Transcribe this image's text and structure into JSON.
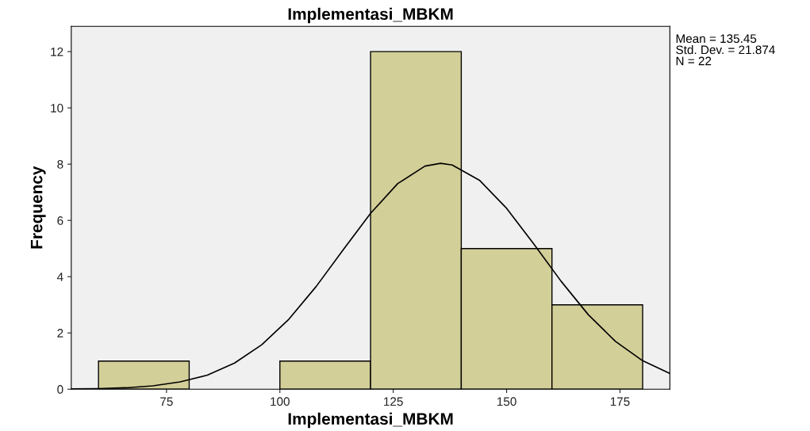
{
  "chart_data": {
    "type": "histogram",
    "title": "Implementasi_MBKM",
    "xlabel": "Implementasi_MBKM",
    "ylabel": "Frequency",
    "annotations": [
      "Mean = 135.45",
      "Std. Dev. = 21.874",
      "N = 22"
    ],
    "series": [
      {
        "type": "histogram",
        "bins": [
          60,
          80,
          100,
          120,
          140,
          160,
          180
        ],
        "values": [
          1,
          0,
          1,
          12,
          5,
          3
        ],
        "color": "#d3cf98"
      },
      {
        "type": "line",
        "color": "#000000",
        "x": [
          54,
          60,
          66,
          72,
          78,
          84,
          90,
          96,
          102,
          108,
          114,
          120,
          126,
          132,
          135.45,
          138,
          144,
          150,
          156,
          162,
          168,
          174,
          180,
          186
        ],
        "values": [
          0.01,
          0.02,
          0.05,
          0.12,
          0.26,
          0.5,
          0.93,
          1.58,
          2.49,
          3.65,
          4.96,
          6.25,
          7.31,
          7.93,
          8.03,
          7.97,
          7.43,
          6.43,
          5.16,
          3.84,
          2.65,
          1.7,
          1.01,
          0.56
        ]
      }
    ],
    "xlim": [
      54,
      186
    ],
    "xticks": [
      75,
      100,
      125,
      150,
      175
    ],
    "ylim": [
      0,
      12.9
    ],
    "yticks": [
      0,
      2,
      4,
      6,
      8,
      10,
      12
    ],
    "grid": false,
    "legend": false
  }
}
